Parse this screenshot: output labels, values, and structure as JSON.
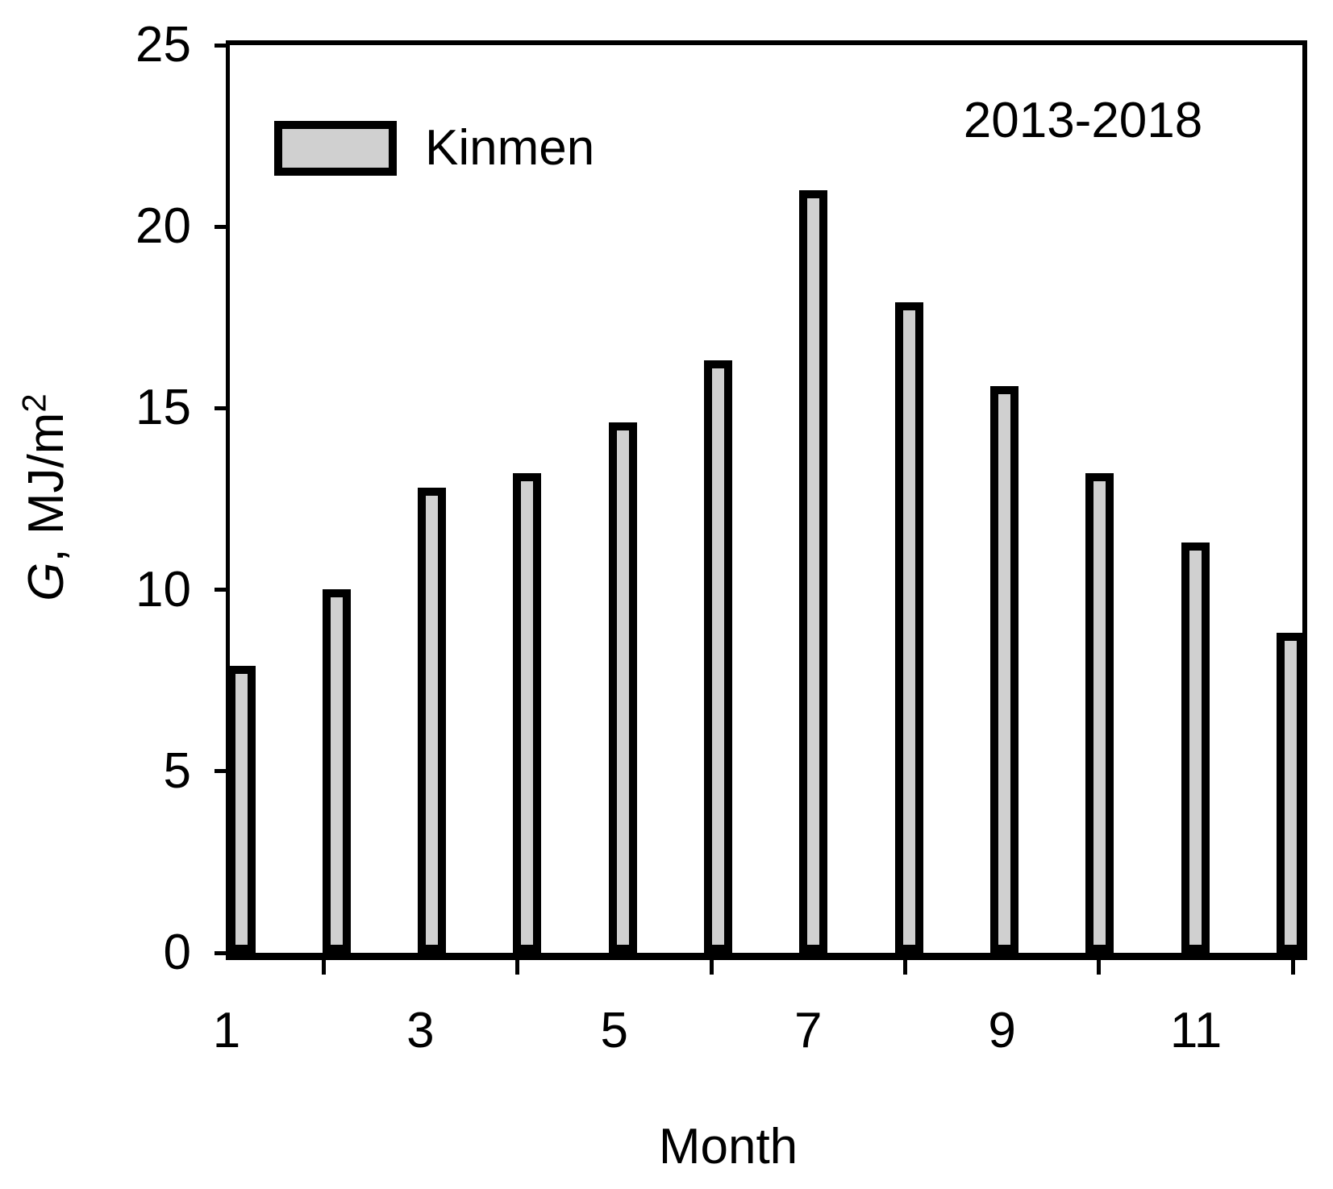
{
  "figure": {
    "annotation": "2013-2018",
    "legend": {
      "label": "Kinmen"
    },
    "y_axis": {
      "label_g": "G",
      "label_rest": ", MJ/m",
      "label_sup": "2"
    },
    "x_axis": {
      "label": "Month"
    }
  },
  "chart_data": {
    "type": "bar",
    "title": "",
    "categories": [
      1,
      2,
      3,
      4,
      5,
      6,
      7,
      8,
      9,
      10,
      11,
      12
    ],
    "values": [
      7.8,
      9.9,
      12.7,
      13.1,
      14.5,
      16.2,
      20.9,
      17.8,
      15.5,
      13.1,
      11.2,
      8.7
    ],
    "series_name": "Kinmen",
    "xlabel": "Month",
    "ylabel": "G, MJ/m^2",
    "xlim": [
      0.5,
      12.5
    ],
    "ylim": [
      0,
      25
    ],
    "yticks": [
      0,
      5,
      10,
      15,
      20,
      25
    ],
    "xticks_labeled": [
      1,
      3,
      5,
      7,
      9,
      11
    ],
    "xticks_marked": [
      2,
      4,
      6,
      8,
      10,
      12
    ],
    "annotation": "2013-2018",
    "legend_position": "top-left-inside",
    "grid": false,
    "bar_fill_color": "#d0d0d0",
    "bar_border_color": "#000000",
    "background_color": "#ffffff"
  }
}
